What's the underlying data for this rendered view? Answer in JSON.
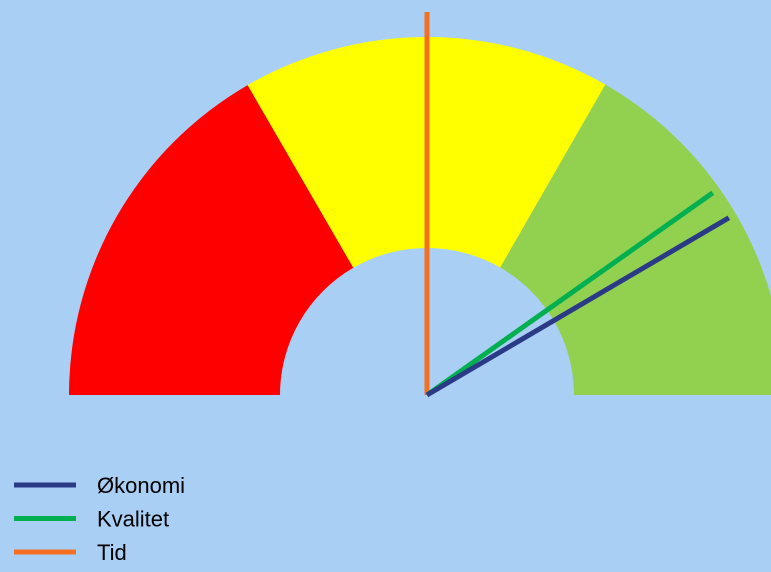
{
  "chart_data": {
    "type": "gauge",
    "ylim": [
      0,
      100
    ],
    "bands": {
      "values": [
        33.3,
        33.3,
        33.4
      ],
      "colors": [
        "#ff0000",
        "#ffff00",
        "#92d050"
      ]
    },
    "series": [
      {
        "name": "Økonomi",
        "color": "#2b3a87",
        "values": [
          83.1
        ]
      },
      {
        "name": "Kvalitet",
        "color": "#00b050",
        "values": [
          80.4
        ]
      },
      {
        "name": "Tid",
        "color": "#f36f21",
        "values": [
          50
        ]
      }
    ]
  }
}
